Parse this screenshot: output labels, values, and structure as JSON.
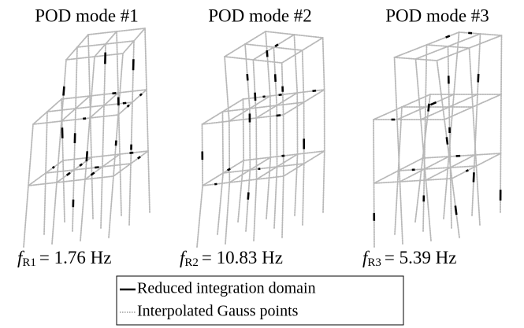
{
  "panels": [
    {
      "title": "POD mode #1",
      "symbol": "f",
      "subscript": "R1",
      "value_text": "= 1.76 Hz"
    },
    {
      "title": "POD mode #2",
      "symbol": "f",
      "subscript": "R2",
      "value_text": "= 10.83 Hz"
    },
    {
      "title": "POD mode #3",
      "symbol": "f",
      "subscript": "R3",
      "value_text": "= 5.39 Hz"
    }
  ],
  "legend": [
    "Reduced integration domain",
    "Interpolated Gauss points"
  ]
}
